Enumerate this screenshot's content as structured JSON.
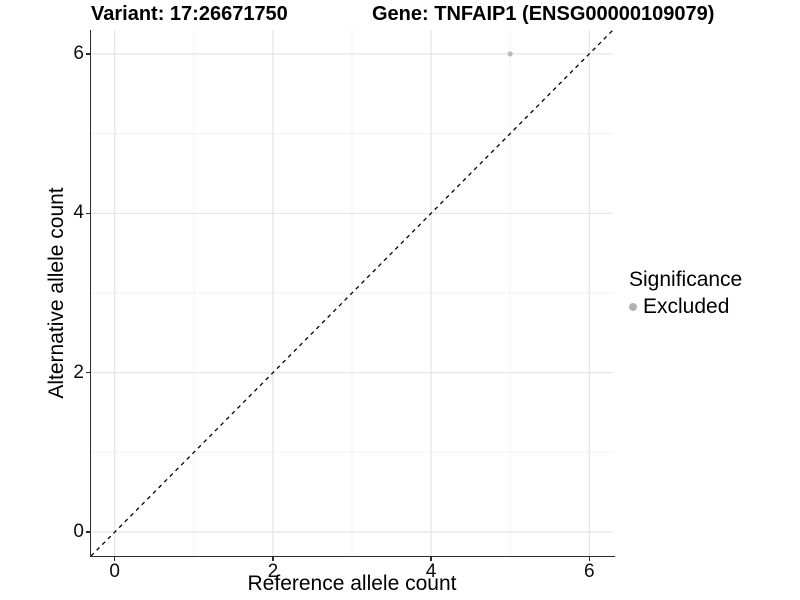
{
  "chart_data": {
    "type": "scatter",
    "title_left": "Variant: 17:26671750",
    "title_right": "Gene: TNFAIP1 (ENSG00000109079)",
    "xlabel": "Reference allele count",
    "ylabel": "Alternative allele count",
    "xlim": [
      -0.3,
      6.3
    ],
    "ylim": [
      -0.3,
      6.3
    ],
    "x_ticks": [
      0,
      2,
      4,
      6
    ],
    "y_ticks": [
      0,
      2,
      4,
      6
    ],
    "x_minor_ticks": [
      1,
      3,
      5
    ],
    "y_minor_ticks": [
      1,
      3,
      5
    ],
    "grid": true,
    "points": [
      {
        "x": 5,
        "y": 6,
        "series": "Excluded",
        "color": "#b9b9b9",
        "radius": 2.6
      }
    ],
    "reference_line": {
      "type": "identity",
      "from": [
        -0.3,
        -0.3
      ],
      "to": [
        6.3,
        6.3
      ],
      "style": "dashed",
      "color": "#000000"
    },
    "legend": {
      "title": "Significance",
      "position": "right",
      "items": [
        {
          "label": "Excluded",
          "color": "#b2b2b2"
        }
      ]
    },
    "colors": {
      "background": "#ffffff",
      "grid_major": "#e5e5e5",
      "grid_minor": "#f2f2f2",
      "axis": "#2b2b2b",
      "text": "#000000"
    }
  }
}
